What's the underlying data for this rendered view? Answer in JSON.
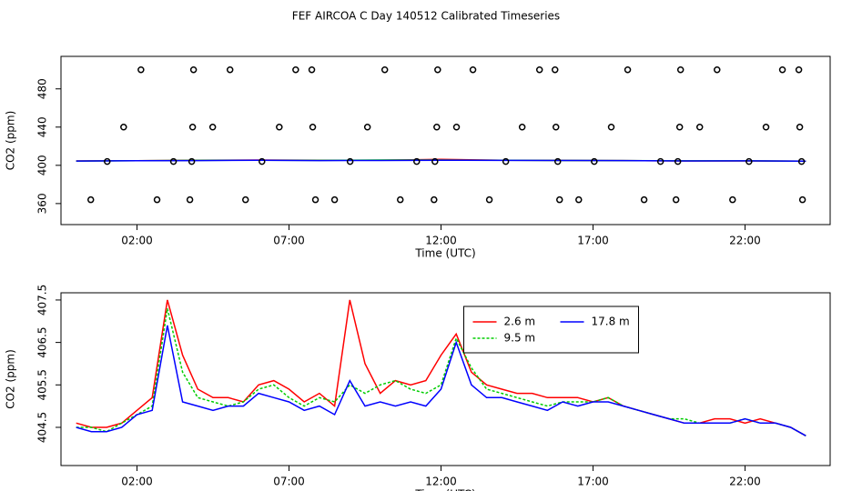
{
  "chart_data": [
    {
      "type": "line",
      "title": "FEF AIRCOA C  Day 140512  Calibrated Timeseries",
      "x_label": "Time (UTC)",
      "y_label": "CO2 (ppm)",
      "x": [
        0,
        2,
        4,
        6,
        8,
        10,
        12,
        14,
        16,
        18,
        20,
        22,
        24
      ],
      "series": [
        {
          "color": "#ff0000",
          "values": [
            404.6,
            404.9,
            405.4,
            405.5,
            405.3,
            405.3,
            406.2,
            405.4,
            405.2,
            405.0,
            404.6,
            404.6,
            404.3
          ]
        },
        {
          "color": "#00cd00",
          "values": [
            404.5,
            404.8,
            405.2,
            405.4,
            405.2,
            405.5,
            405.5,
            405.3,
            405.1,
            405.0,
            404.7,
            404.7,
            404.3
          ]
        },
        {
          "color": "#0000ff",
          "values": [
            404.5,
            404.8,
            405.0,
            405.3,
            405.0,
            405.1,
            405.4,
            405.2,
            405.1,
            405.0,
            404.6,
            404.7,
            404.3
          ]
        }
      ],
      "points": {
        "color": "#000000",
        "x": [
          2.13,
          3.86,
          5.06,
          7.22,
          7.75,
          10.15,
          11.89,
          13.05,
          15.24,
          15.75,
          18.14,
          19.88,
          21.08,
          23.23,
          23.77,
          1.56,
          3.83,
          4.49,
          6.68,
          7.78,
          9.58,
          11.86,
          12.51,
          14.67,
          15.78,
          17.6,
          19.85,
          20.51,
          22.69,
          23.8,
          1.02,
          3.2,
          3.8,
          6.11,
          9.01,
          11.2,
          11.8,
          14.13,
          15.84,
          17.04,
          19.22,
          19.79,
          22.13,
          23.86,
          0.48,
          2.66,
          3.74,
          5.57,
          7.87,
          8.5,
          10.66,
          11.77,
          13.59,
          15.9,
          16.53,
          18.68,
          19.73,
          21.59,
          23.89
        ],
        "values": [
          500,
          500,
          500,
          500,
          500,
          500,
          500,
          500,
          500,
          500,
          500,
          500,
          500,
          500,
          500,
          440,
          440,
          440,
          440,
          440,
          440,
          440,
          440,
          440,
          440,
          440,
          440,
          440,
          440,
          440,
          404,
          404,
          404,
          404,
          404,
          404,
          404,
          404,
          404,
          404,
          404,
          404,
          404,
          404,
          364,
          364,
          364,
          364,
          364,
          364,
          364,
          364,
          364,
          364,
          364,
          364,
          364,
          364,
          364
        ]
      },
      "xlim": [
        -0.5,
        24.8
      ],
      "xticks": [
        {
          "value": 2,
          "label": "02:00"
        },
        {
          "value": 7,
          "label": "07:00"
        },
        {
          "value": 12,
          "label": "12:00"
        },
        {
          "value": 17,
          "label": "17:00"
        },
        {
          "value": 22,
          "label": "22:00"
        }
      ],
      "ylim": [
        338,
        514
      ],
      "yticks": [
        360,
        400,
        440,
        480
      ]
    },
    {
      "type": "line",
      "x_label": "Time (UTC)",
      "y_label": "CO2 (ppm)",
      "x": [
        0,
        0.5,
        1,
        1.5,
        2,
        2.5,
        3,
        3.5,
        4,
        4.5,
        5,
        5.5,
        6,
        6.5,
        7,
        7.5,
        8,
        8.5,
        9,
        9.5,
        10,
        10.5,
        11,
        11.5,
        12,
        12.5,
        13,
        13.5,
        14,
        14.5,
        15,
        15.5,
        16,
        16.5,
        17,
        17.5,
        18,
        18.5,
        19,
        19.5,
        20,
        20.5,
        21,
        21.5,
        22,
        22.5,
        23,
        23.5,
        24
      ],
      "series": [
        {
          "name": "2.6 m",
          "color": "#ff0000",
          "values": [
            404.6,
            404.5,
            404.5,
            404.6,
            404.9,
            405.2,
            407.5,
            406.2,
            405.4,
            405.2,
            405.2,
            405.1,
            405.5,
            405.6,
            405.4,
            405.1,
            405.3,
            405.0,
            407.5,
            406.0,
            405.3,
            405.6,
            405.5,
            405.6,
            406.2,
            406.7,
            405.8,
            405.5,
            405.4,
            405.3,
            405.3,
            405.2,
            405.2,
            405.2,
            405.1,
            405.2,
            405.0,
            404.9,
            404.8,
            404.7,
            404.6,
            404.6,
            404.7,
            404.7,
            404.6,
            404.7,
            404.6,
            404.5,
            404.3
          ]
        },
        {
          "name": "9.5 m",
          "color": "#00cd00",
          "dash": "3,2",
          "values": [
            404.5,
            404.5,
            404.4,
            404.6,
            404.8,
            405.0,
            407.3,
            405.8,
            405.2,
            405.1,
            405.0,
            405.1,
            405.4,
            405.5,
            405.2,
            405.0,
            405.2,
            405.1,
            405.5,
            405.3,
            405.5,
            405.6,
            405.4,
            405.3,
            405.5,
            406.6,
            405.9,
            405.4,
            405.3,
            405.2,
            405.1,
            405.0,
            405.1,
            405.1,
            405.1,
            405.2,
            405.0,
            404.9,
            404.8,
            404.7,
            404.7,
            404.6,
            404.6,
            404.6,
            404.7,
            404.6,
            404.6,
            404.5,
            404.3
          ]
        },
        {
          "name": "17.8 m",
          "color": "#0000ff",
          "values": [
            404.5,
            404.4,
            404.4,
            404.5,
            404.8,
            404.9,
            406.9,
            405.1,
            405.0,
            404.9,
            405.0,
            405.0,
            405.3,
            405.2,
            405.1,
            404.9,
            405.0,
            404.8,
            405.6,
            405.0,
            405.1,
            405.0,
            405.1,
            405.0,
            405.4,
            406.5,
            405.5,
            405.2,
            405.2,
            405.1,
            405.0,
            404.9,
            405.1,
            405.0,
            405.1,
            405.1,
            405.0,
            404.9,
            404.8,
            404.7,
            404.6,
            404.6,
            404.6,
            404.6,
            404.7,
            404.6,
            404.6,
            404.5,
            404.3
          ]
        }
      ],
      "legend": "top",
      "xlim": [
        -0.5,
        24.8
      ],
      "xticks": [
        {
          "value": 2,
          "label": "02:00"
        },
        {
          "value": 7,
          "label": "07:00"
        },
        {
          "value": 12,
          "label": "12:00"
        },
        {
          "value": 17,
          "label": "17:00"
        },
        {
          "value": 22,
          "label": "22:00"
        }
      ],
      "ylim": [
        403.6,
        407.67
      ],
      "yticks": [
        404.5,
        405.5,
        406.5,
        407.5
      ]
    }
  ]
}
